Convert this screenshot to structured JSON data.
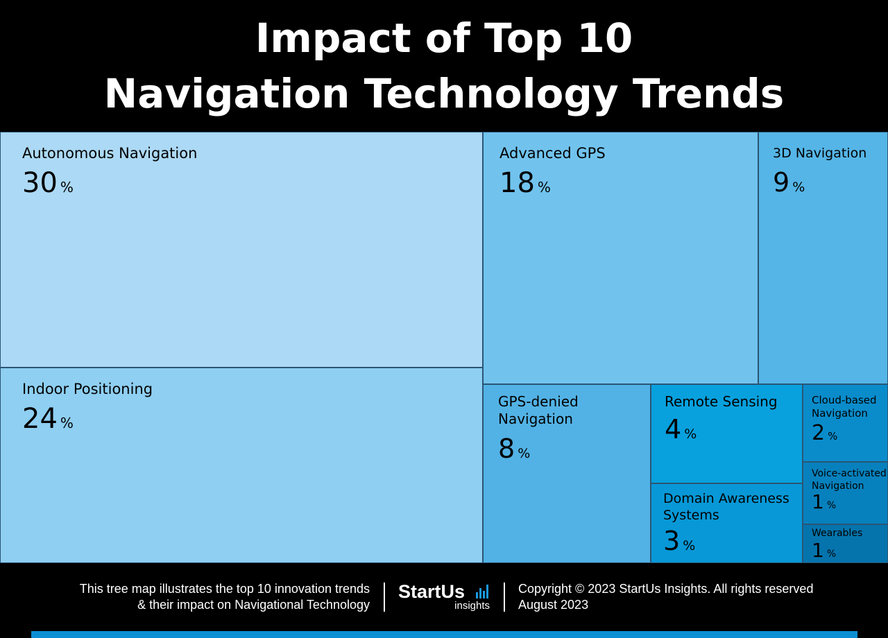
{
  "title_lines": [
    "Impact of Top 10",
    "Navigation Technology Trends"
  ],
  "chart_data": {
    "type": "treemap",
    "title": "Impact of Top 10 Navigation Technology Trends",
    "unit": "%",
    "items": [
      {
        "name": "Autonomous Navigation",
        "value": 30,
        "color": "#acd9f5"
      },
      {
        "name": "Indoor Positioning",
        "value": 24,
        "color": "#8ecff2"
      },
      {
        "name": "Advanced GPS",
        "value": 18,
        "color": "#71c3ee"
      },
      {
        "name": "3D Navigation",
        "value": 9,
        "color": "#55b5e7"
      },
      {
        "name": "GPS-denied\nNavigation",
        "value": 8,
        "color": "#52b2e5"
      },
      {
        "name": "Remote Sensing",
        "value": 4,
        "color": "#08a1de"
      },
      {
        "name": "Domain Awareness\nSystems",
        "value": 3,
        "color": "#0898d7"
      },
      {
        "name": "Cloud-based\nNavigation",
        "value": 2,
        "color": "#0a8ccb"
      },
      {
        "name": "Voice-activated\nNavigation",
        "value": 1,
        "color": "#0781bd"
      },
      {
        "name": "Wearables",
        "value": 1,
        "color": "#0574ad"
      }
    ]
  },
  "footer": {
    "description_lines": [
      "This tree map illustrates the top 10 innovation trends",
      "& their impact on Navigational Technology"
    ],
    "logo_text": "StartUs",
    "logo_sub": "insights",
    "copyright_lines": [
      "Copyright © 2023 StartUs Insights. All rights reserved",
      "August 2023"
    ]
  },
  "colors": {
    "background": "#000000",
    "accent": "#0c8fd3",
    "cell_border": "#2c5575"
  }
}
